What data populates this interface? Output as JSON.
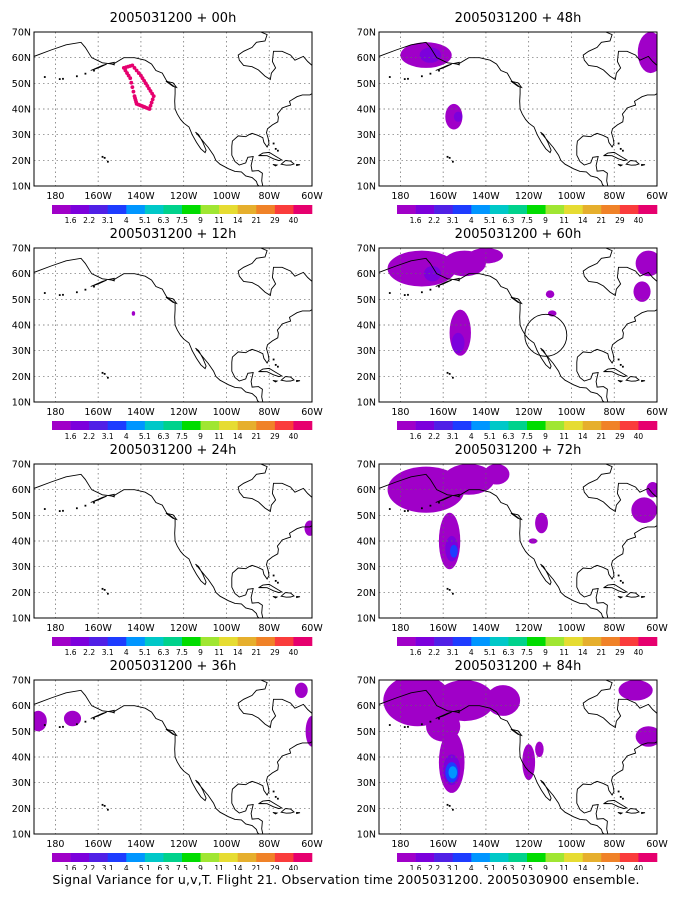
{
  "caption": "Signal Variance for u,v,T. Flight 21. Observation time 2005031200. 2005030900 ensemble.",
  "lat_labels": [
    "70N",
    "60N",
    "50N",
    "40N",
    "30N",
    "20N",
    "10N"
  ],
  "lon_labels": [
    "180",
    "160W",
    "140W",
    "120W",
    "100W",
    "80W",
    "60W"
  ],
  "colorbar": {
    "levels": [
      "1.6",
      "2.2",
      "3.1",
      "4",
      "5.1",
      "6.3",
      "7.5",
      "9",
      "11",
      "14",
      "21",
      "29",
      "40"
    ],
    "colors": [
      "#a000c8",
      "#7c00dc",
      "#5020e6",
      "#1e3cff",
      "#0096ff",
      "#00c8c8",
      "#00d28c",
      "#00dc00",
      "#a0e632",
      "#e6dc32",
      "#e6af2d",
      "#f08228",
      "#fa3c3c",
      "#e6006e"
    ]
  },
  "panels": [
    {
      "id": "p00",
      "title": "2005031200 + 00h"
    },
    {
      "id": "p48",
      "title": "2005031200 + 48h"
    },
    {
      "id": "p12",
      "title": "2005031200 + 12h"
    },
    {
      "id": "p60",
      "title": "2005031200 + 60h"
    },
    {
      "id": "p24",
      "title": "2005031200 + 24h"
    },
    {
      "id": "p72",
      "title": "2005031200 + 72h"
    },
    {
      "id": "p36",
      "title": "2005031200 + 36h"
    },
    {
      "id": "p84",
      "title": "2005031200 + 84h"
    }
  ],
  "flight_track_color": "#e6006e"
}
